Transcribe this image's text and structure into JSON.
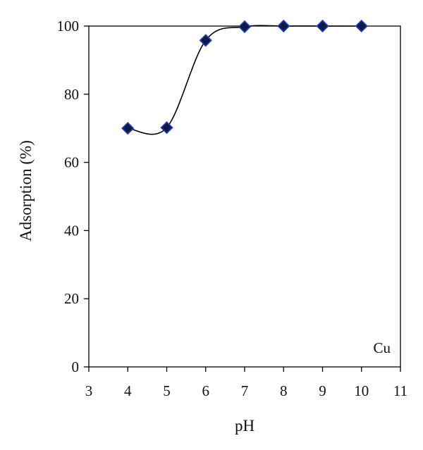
{
  "chart_data": {
    "type": "scatter",
    "title": "",
    "xlabel": "pH",
    "ylabel": "Adsorption (%)",
    "xlim": [
      3,
      11
    ],
    "ylim": [
      0,
      100
    ],
    "xticks": [
      3,
      4,
      5,
      6,
      7,
      8,
      9,
      10,
      11
    ],
    "yticks": [
      0,
      20,
      40,
      60,
      80,
      100
    ],
    "grid": false,
    "legend": "none",
    "annotation": "Cu",
    "series": [
      {
        "x": [
          4,
          5,
          6,
          7,
          8,
          9,
          10
        ],
        "y": [
          70,
          70.2,
          95.8,
          99.8,
          100,
          100,
          100
        ],
        "marker": "diamond",
        "marker_fill": "#0d1a45",
        "marker_stroke": "#1f3fbf",
        "line": "smooth",
        "line_color": "#000000"
      }
    ]
  }
}
